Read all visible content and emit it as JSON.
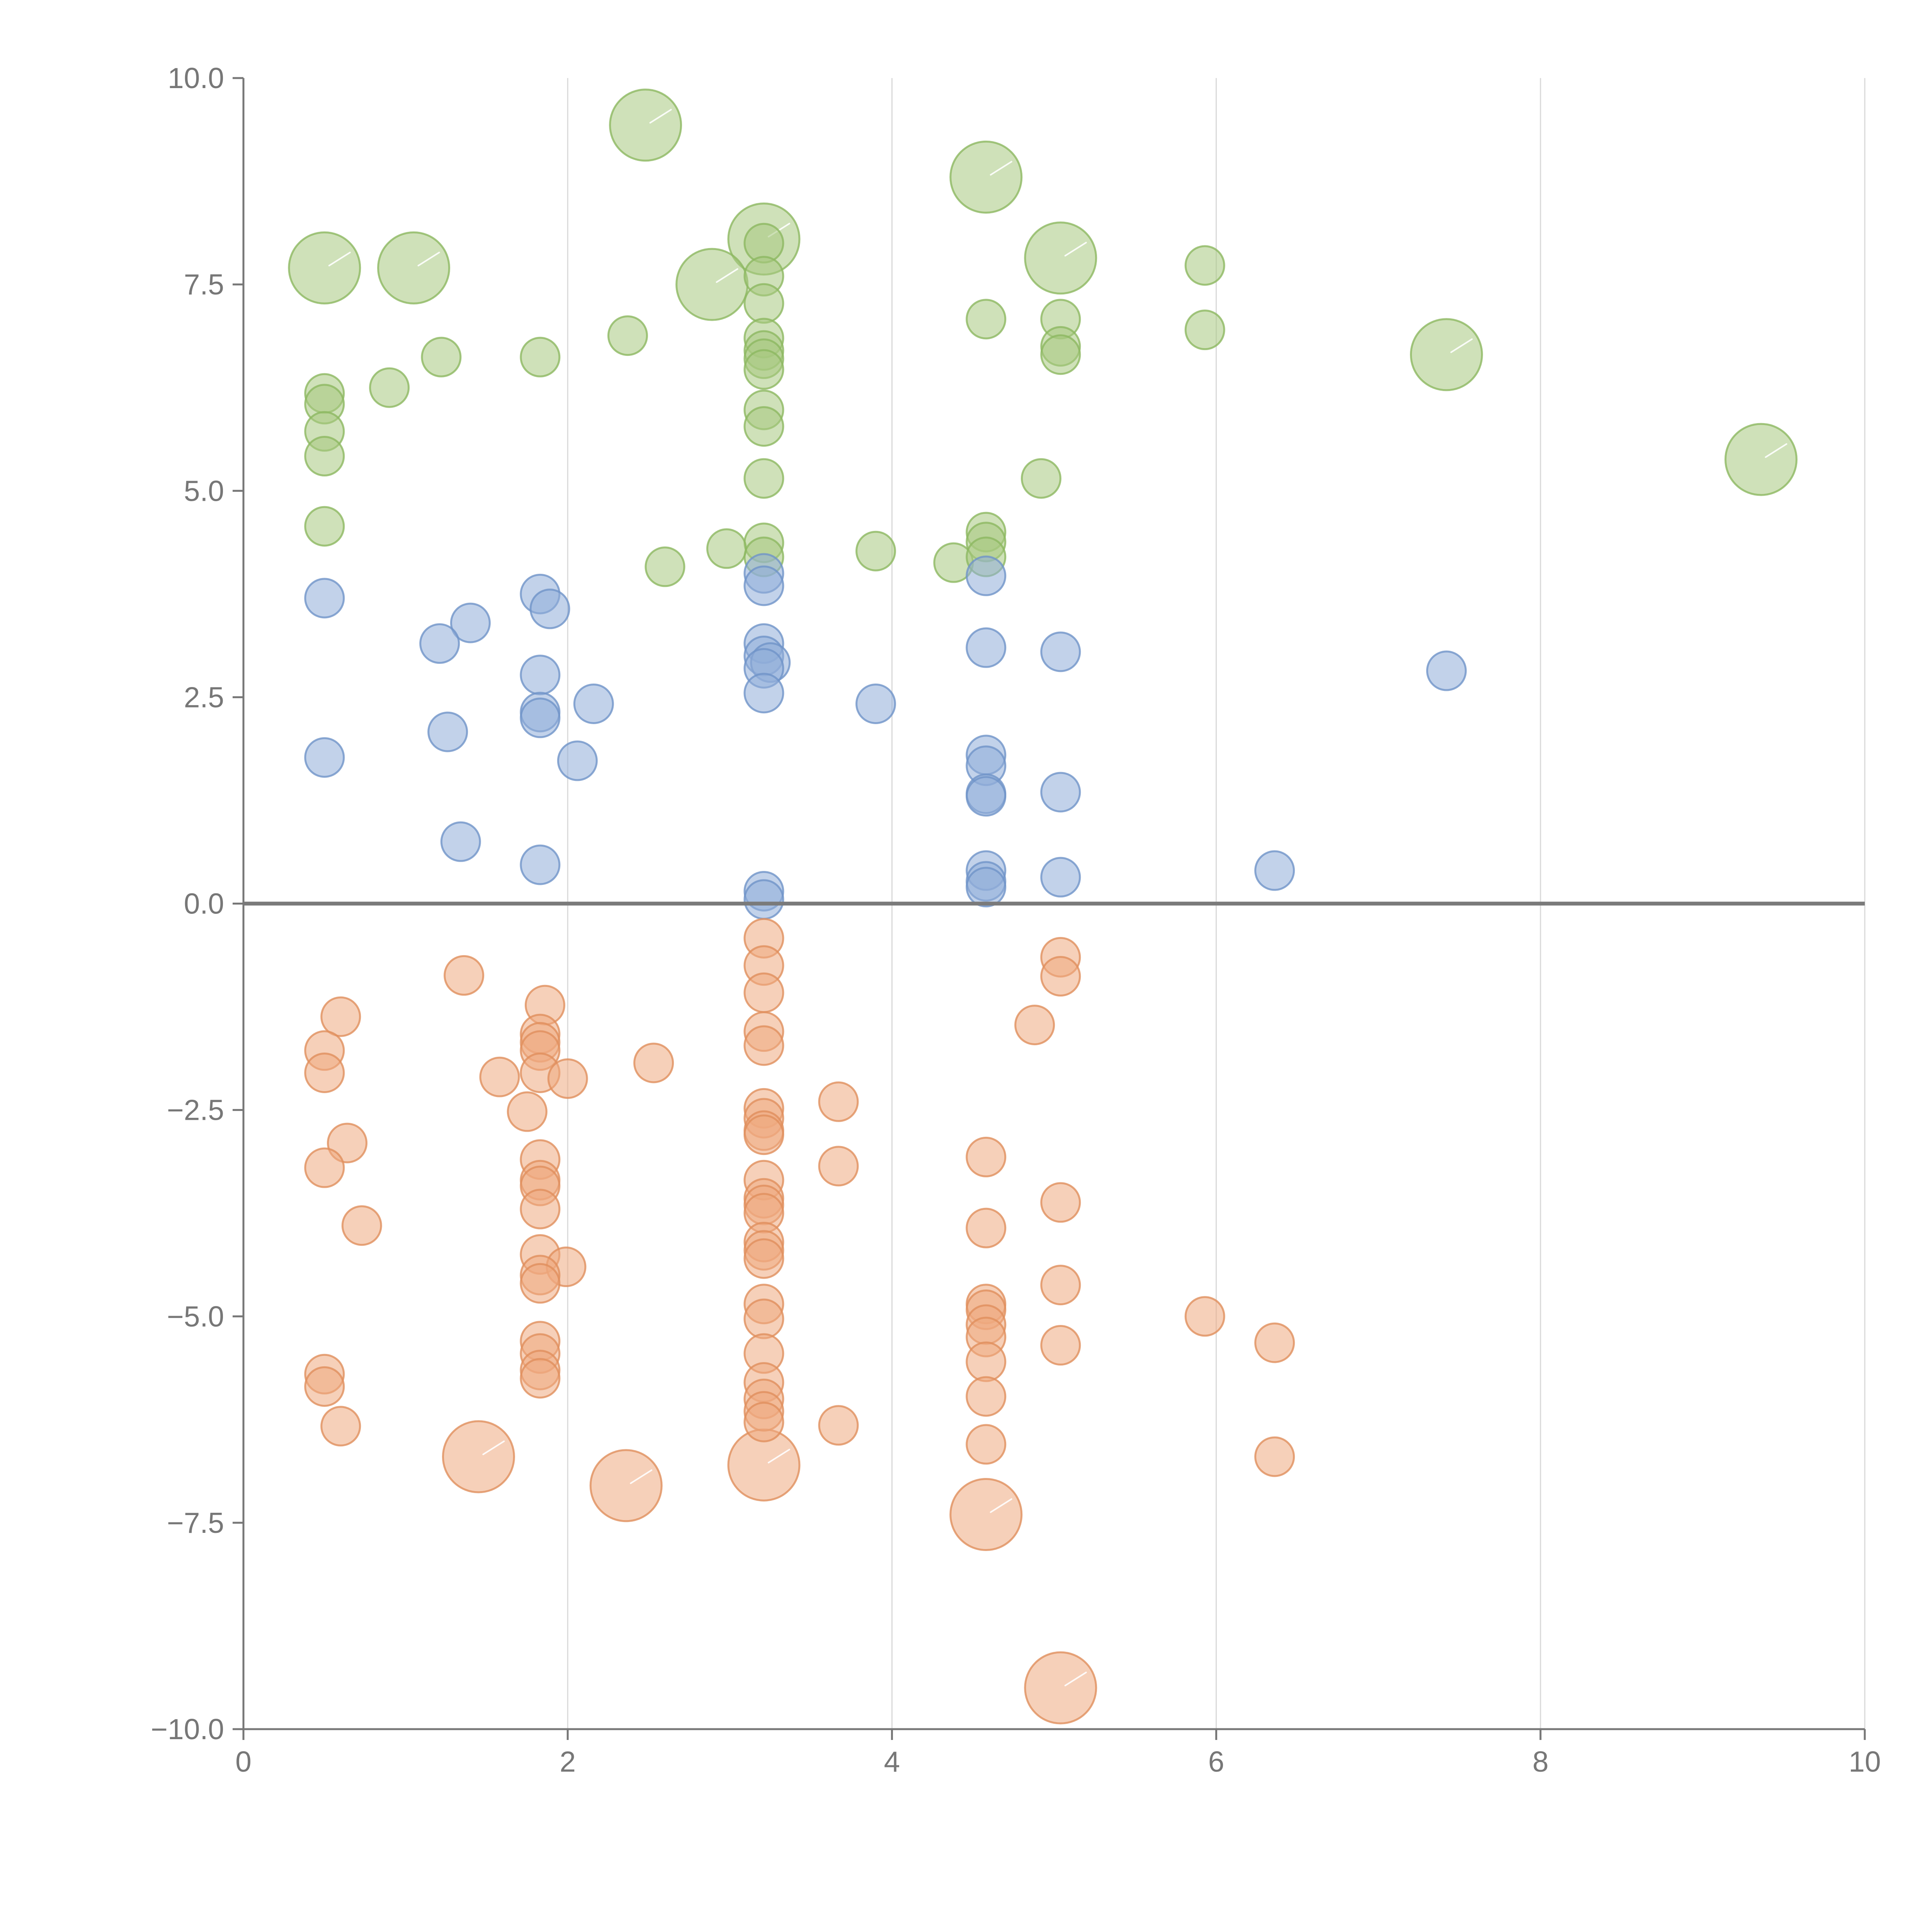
{
  "chart_data": {
    "type": "scatter",
    "title": "",
    "xlabel": "",
    "ylabel": "",
    "xlim": [
      0,
      10
    ],
    "ylim": [
      -10,
      10
    ],
    "grid": "vertical",
    "x_ticks": [
      0,
      2,
      4,
      6,
      8,
      10
    ],
    "x_tick_labels": [
      "0",
      "2",
      "4",
      "6",
      "8",
      "10"
    ],
    "y_ticks": [
      10,
      7.5,
      5,
      2.5,
      0,
      -2.5,
      -5,
      -7.5,
      -10
    ],
    "y_tick_labels": [
      "10.0",
      "7.5",
      "5.0",
      "2.5",
      "0.0",
      "−2.5",
      "−5.0",
      "−7.5",
      "−10.0"
    ],
    "reference_line": 0,
    "series": [
      {
        "name": "green",
        "color": "#a8c97f",
        "stroke": "#8cb860",
        "points": [
          [
            2.48,
            9.43,
            1
          ],
          [
            4.58,
            8.8,
            1
          ],
          [
            3.21,
            8.05,
            1
          ],
          [
            0.5,
            7.7,
            1
          ],
          [
            1.05,
            7.7,
            1
          ],
          [
            5.04,
            7.82,
            1
          ],
          [
            2.89,
            7.5,
            1
          ],
          [
            7.42,
            6.65,
            1
          ],
          [
            9.36,
            5.38,
            1
          ],
          [
            3.21,
            8.0,
            0
          ],
          [
            3.21,
            7.6,
            0
          ],
          [
            3.21,
            7.27,
            0
          ],
          [
            3.21,
            6.85,
            0
          ],
          [
            3.21,
            6.7,
            0
          ],
          [
            3.21,
            6.6,
            0
          ],
          [
            3.21,
            6.47,
            0
          ],
          [
            3.21,
            5.98,
            0
          ],
          [
            3.21,
            5.78,
            0
          ],
          [
            3.21,
            5.15,
            0
          ],
          [
            3.21,
            4.37,
            0
          ],
          [
            3.21,
            4.2,
            0
          ],
          [
            5.93,
            7.73,
            0
          ],
          [
            4.58,
            7.08,
            0
          ],
          [
            5.04,
            7.08,
            0
          ],
          [
            5.04,
            6.75,
            0
          ],
          [
            5.04,
            6.65,
            0
          ],
          [
            5.93,
            6.95,
            0
          ],
          [
            2.37,
            6.88,
            0
          ],
          [
            1.22,
            6.62,
            0
          ],
          [
            1.83,
            6.62,
            0
          ],
          [
            0.9,
            6.25,
            0
          ],
          [
            0.5,
            6.18,
            0
          ],
          [
            0.5,
            6.05,
            0
          ],
          [
            0.5,
            5.72,
            0
          ],
          [
            0.5,
            5.42,
            0
          ],
          [
            0.5,
            4.57,
            0
          ],
          [
            4.92,
            5.15,
            0
          ],
          [
            2.6,
            4.08,
            0
          ],
          [
            2.98,
            4.3,
            0
          ],
          [
            3.9,
            4.27,
            0
          ],
          [
            4.38,
            4.13,
            0
          ],
          [
            4.58,
            4.5,
            0
          ],
          [
            4.58,
            4.38,
            0
          ],
          [
            4.58,
            4.2,
            0
          ]
        ]
      },
      {
        "name": "blue",
        "color": "#8fadd8",
        "stroke": "#6f93c8",
        "points": [
          [
            0.5,
            3.7,
            0
          ],
          [
            0.5,
            1.77,
            0
          ],
          [
            1.4,
            3.4,
            0
          ],
          [
            1.21,
            3.15,
            0
          ],
          [
            1.26,
            2.08,
            0
          ],
          [
            1.34,
            0.75,
            0
          ],
          [
            1.83,
            3.75,
            0
          ],
          [
            1.89,
            3.57,
            0
          ],
          [
            1.83,
            2.77,
            0
          ],
          [
            1.83,
            2.32,
            0
          ],
          [
            1.83,
            2.25,
            0
          ],
          [
            2.16,
            2.42,
            0
          ],
          [
            2.06,
            1.73,
            0
          ],
          [
            1.83,
            0.47,
            0
          ],
          [
            3.21,
            4.0,
            0
          ],
          [
            3.21,
            3.85,
            0
          ],
          [
            3.21,
            3.15,
            0
          ],
          [
            3.21,
            3.0,
            0
          ],
          [
            3.25,
            2.92,
            0
          ],
          [
            3.21,
            2.85,
            0
          ],
          [
            3.21,
            2.55,
            0
          ],
          [
            3.21,
            0.15,
            0
          ],
          [
            3.21,
            0.05,
            0
          ],
          [
            3.9,
            2.42,
            0
          ],
          [
            4.58,
            3.97,
            0
          ],
          [
            4.58,
            3.1,
            0
          ],
          [
            4.58,
            1.8,
            0
          ],
          [
            4.58,
            1.67,
            0
          ],
          [
            4.58,
            1.33,
            0
          ],
          [
            4.58,
            1.3,
            0
          ],
          [
            4.58,
            0.4,
            0
          ],
          [
            4.58,
            0.27,
            0
          ],
          [
            4.58,
            0.2,
            0
          ],
          [
            5.04,
            3.05,
            0
          ],
          [
            5.04,
            1.35,
            0
          ],
          [
            5.04,
            0.32,
            0
          ],
          [
            6.36,
            0.4,
            0
          ],
          [
            7.42,
            2.82,
            0
          ]
        ]
      },
      {
        "name": "orange",
        "color": "#eeaa80",
        "stroke": "#e08f5c",
        "points": [
          [
            1.45,
            -6.7,
            1
          ],
          [
            2.36,
            -7.05,
            1
          ],
          [
            3.21,
            -6.8,
            1
          ],
          [
            4.58,
            -7.4,
            1
          ],
          [
            5.04,
            -9.5,
            1
          ],
          [
            1.36,
            -0.87,
            0
          ],
          [
            0.6,
            -1.37,
            0
          ],
          [
            0.5,
            -1.78,
            0
          ],
          [
            0.5,
            -2.05,
            0
          ],
          [
            0.64,
            -2.9,
            0
          ],
          [
            0.5,
            -3.2,
            0
          ],
          [
            0.73,
            -3.9,
            0
          ],
          [
            0.5,
            -5.7,
            0
          ],
          [
            0.5,
            -5.85,
            0
          ],
          [
            0.6,
            -6.33,
            0
          ],
          [
            1.86,
            -1.23,
            0
          ],
          [
            1.83,
            -1.58,
            0
          ],
          [
            1.83,
            -1.68,
            0
          ],
          [
            1.83,
            -1.78,
            0
          ],
          [
            1.58,
            -2.1,
            0
          ],
          [
            1.83,
            -2.05,
            0
          ],
          [
            2.0,
            -2.12,
            0
          ],
          [
            2.53,
            -1.93,
            0
          ],
          [
            1.75,
            -2.52,
            0
          ],
          [
            1.83,
            -3.1,
            0
          ],
          [
            1.83,
            -3.35,
            0
          ],
          [
            1.83,
            -3.42,
            0
          ],
          [
            1.83,
            -3.7,
            0
          ],
          [
            1.83,
            -4.25,
            0
          ],
          [
            1.99,
            -4.4,
            0
          ],
          [
            1.83,
            -4.5,
            0
          ],
          [
            1.83,
            -4.6,
            0
          ],
          [
            1.83,
            -5.3,
            0
          ],
          [
            1.83,
            -5.45,
            0
          ],
          [
            1.83,
            -5.65,
            0
          ],
          [
            1.83,
            -5.75,
            0
          ],
          [
            3.21,
            -0.42,
            0
          ],
          [
            3.21,
            -0.75,
            0
          ],
          [
            3.21,
            -1.08,
            0
          ],
          [
            3.21,
            -1.55,
            0
          ],
          [
            3.21,
            -1.72,
            0
          ],
          [
            3.21,
            -2.48,
            0
          ],
          [
            3.21,
            -2.6,
            0
          ],
          [
            3.21,
            -2.75,
            0
          ],
          [
            3.21,
            -2.8,
            0
          ],
          [
            3.21,
            -3.35,
            0
          ],
          [
            3.21,
            -3.57,
            0
          ],
          [
            3.21,
            -3.65,
            0
          ],
          [
            3.21,
            -3.75,
            0
          ],
          [
            3.21,
            -4.1,
            0
          ],
          [
            3.21,
            -4.2,
            0
          ],
          [
            3.21,
            -4.3,
            0
          ],
          [
            3.21,
            -4.85,
            0
          ],
          [
            3.21,
            -5.03,
            0
          ],
          [
            3.21,
            -5.45,
            0
          ],
          [
            3.21,
            -5.8,
            0
          ],
          [
            3.21,
            -6.0,
            0
          ],
          [
            3.21,
            -6.15,
            0
          ],
          [
            3.21,
            -6.28,
            0
          ],
          [
            3.67,
            -2.4,
            0
          ],
          [
            3.67,
            -3.18,
            0
          ],
          [
            3.67,
            -6.32,
            0
          ],
          [
            4.58,
            -3.07,
            0
          ],
          [
            4.58,
            -3.93,
            0
          ],
          [
            4.58,
            -4.85,
            0
          ],
          [
            4.58,
            -4.92,
            0
          ],
          [
            4.58,
            -5.1,
            0
          ],
          [
            4.58,
            -5.25,
            0
          ],
          [
            4.58,
            -5.55,
            0
          ],
          [
            4.58,
            -5.97,
            0
          ],
          [
            4.58,
            -6.55,
            0
          ],
          [
            4.88,
            -1.47,
            0
          ],
          [
            5.04,
            -0.65,
            0
          ],
          [
            5.04,
            -0.88,
            0
          ],
          [
            5.04,
            -3.62,
            0
          ],
          [
            5.04,
            -4.62,
            0
          ],
          [
            5.04,
            -5.35,
            0
          ],
          [
            5.93,
            -5.0,
            0
          ],
          [
            6.36,
            -5.32,
            0
          ],
          [
            6.36,
            -6.7,
            0
          ]
        ]
      }
    ]
  }
}
